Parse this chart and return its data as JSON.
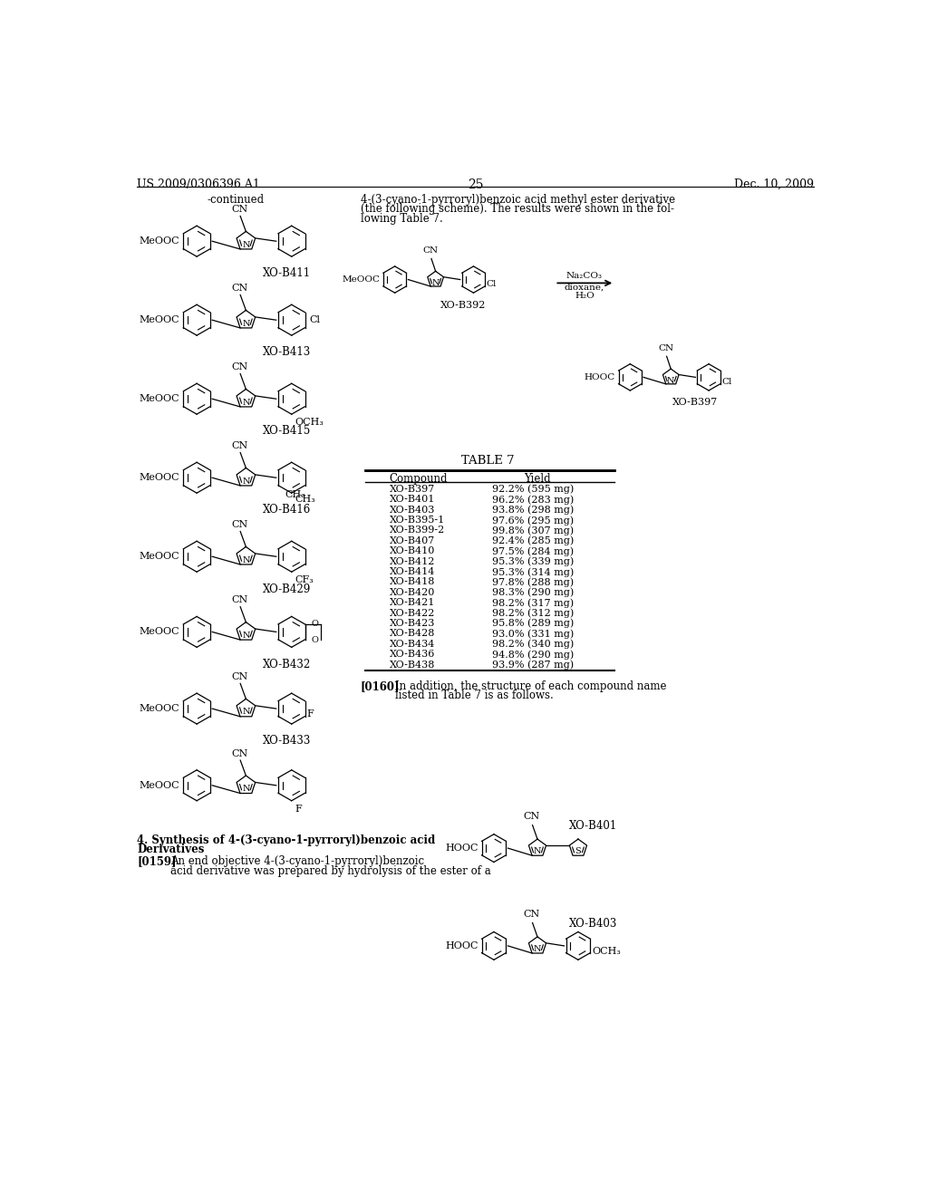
{
  "page_header_left": "US 2009/0306396 A1",
  "page_header_right": "Dec. 10, 2009",
  "page_number": "25",
  "background_color": "#ffffff",
  "continued_label": "-continued",
  "right_top_text_lines": [
    "4-(3-cyano-1-pyrroryl)benzoic acid methyl ester derivative",
    "(the following scheme). The results were shown in the fol-",
    "lowing Table 7."
  ],
  "table_title": "TABLE 7",
  "table_header": [
    "Compound",
    "Yield"
  ],
  "table_data": [
    [
      "XO-B397",
      "92.2% (595 mg)"
    ],
    [
      "XO-B401",
      "96.2% (283 mg)"
    ],
    [
      "XO-B403",
      "93.8% (298 mg)"
    ],
    [
      "XO-B395-1",
      "97.6% (295 mg)"
    ],
    [
      "XO-B399-2",
      "99.8% (307 mg)"
    ],
    [
      "XO-B407",
      "92.4% (285 mg)"
    ],
    [
      "XO-B410",
      "97.5% (284 mg)"
    ],
    [
      "XO-B412",
      "95.3% (339 mg)"
    ],
    [
      "XO-B414",
      "95.3% (314 mg)"
    ],
    [
      "XO-B418",
      "97.8% (288 mg)"
    ],
    [
      "XO-B420",
      "98.3% (290 mg)"
    ],
    [
      "XO-B421",
      "98.2% (317 mg)"
    ],
    [
      "XO-B422",
      "98.2% (312 mg)"
    ],
    [
      "XO-B423",
      "95.8% (289 mg)"
    ],
    [
      "XO-B428",
      "93.0% (331 mg)"
    ],
    [
      "XO-B434",
      "98.2% (340 mg)"
    ],
    [
      "XO-B436",
      "94.8% (290 mg)"
    ],
    [
      "XO-B438",
      "93.9% (287 mg)"
    ]
  ],
  "bottom_left_heading_line1": "4. Synthesis of 4-(3-cyano-1-pyrroryl)benzoic acid",
  "bottom_left_heading_line2": "Derivatives",
  "para_0159_label": "[0159]",
  "para_0159_text_lines": [
    "An end objective 4-(3-cyano-1-pyrroryl)benzoic",
    "acid derivative was prepared by hydrolysis of the ester of a"
  ],
  "para_0160_label": "[0160]",
  "para_0160_text": "In addition, the structure of each compound name\nlisted in Table 7 is as follows."
}
